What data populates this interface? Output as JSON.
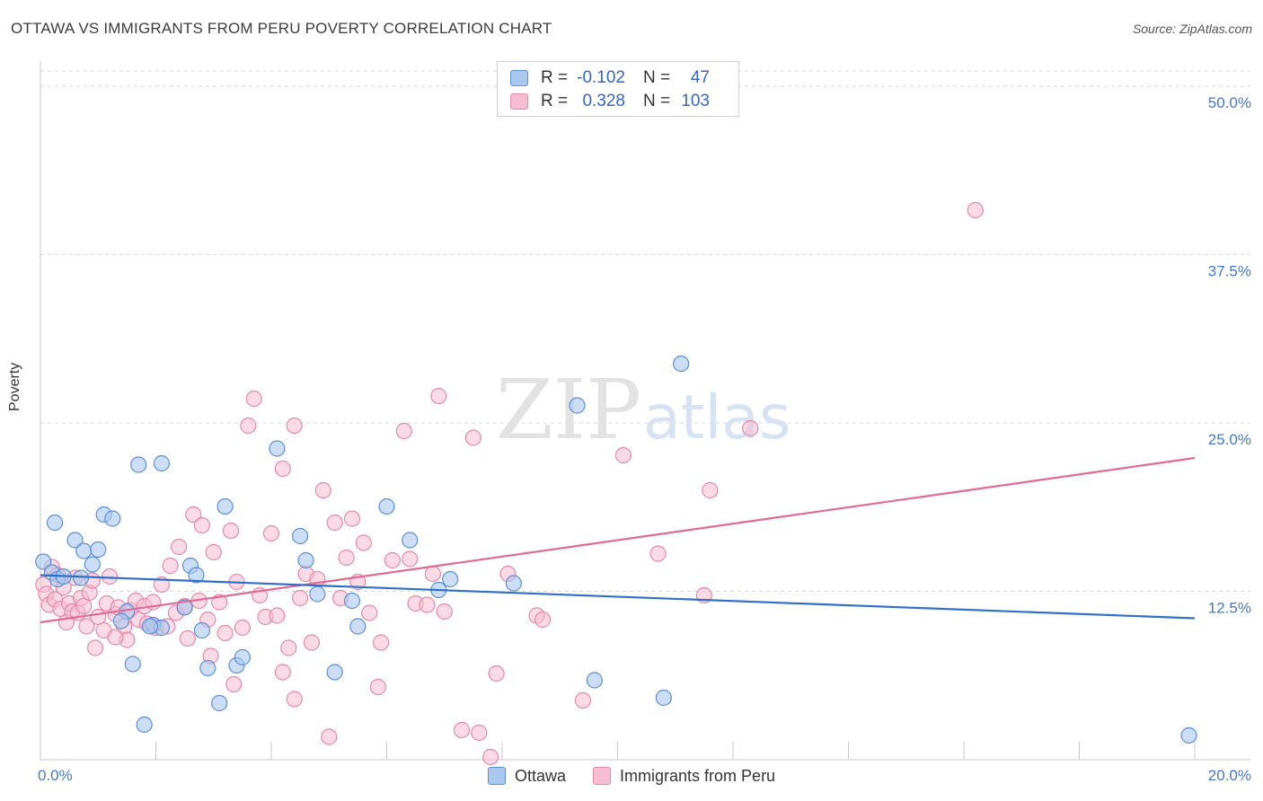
{
  "header": {
    "title": "OTTAWA VS IMMIGRANTS FROM PERU POVERTY CORRELATION CHART",
    "source": "Source: ZipAtlas.com"
  },
  "watermark": {
    "zip": "ZIP",
    "atlas": "atlas"
  },
  "colors": {
    "ottawa_fill": "#a9c8ef",
    "ottawa_stroke": "#5b8fd6",
    "ottawa_line": "#2f6fc8",
    "peru_fill": "#f6bcd0",
    "peru_stroke": "#e589aa",
    "peru_line": "#e06a94"
  },
  "stats": {
    "rows": [
      {
        "r_label": "R =",
        "r_value": "-0.102",
        "n_label": "N =",
        "n_value": "47"
      },
      {
        "r_label": "R =",
        "r_value": "0.328",
        "n_label": "N =",
        "n_value": "103"
      }
    ]
  },
  "legend": {
    "items": [
      "Ottawa",
      "Immigrants from Peru"
    ]
  },
  "chart_data": {
    "type": "scatter",
    "title": "OTTAWA VS IMMIGRANTS FROM PERU POVERTY CORRELATION CHART",
    "xlabel": "",
    "ylabel": "Poverty",
    "xlim": [
      0,
      20
    ],
    "ylim": [
      0,
      50
    ],
    "x_tick_labels": [
      "0.0%",
      "20.0%"
    ],
    "y_ticks": [
      12.5,
      25.0,
      37.5,
      50.0
    ],
    "y_tick_labels": [
      "12.5%",
      "25.0%",
      "37.5%",
      "50.0%"
    ],
    "legend_position": "top-center",
    "series": [
      {
        "name": "Ottawa",
        "trend": {
          "x": [
            0,
            20
          ],
          "y": [
            13.7,
            10.5
          ]
        },
        "points": [
          [
            0.05,
            14.7
          ],
          [
            0.2,
            13.9
          ],
          [
            0.3,
            13.4
          ],
          [
            0.25,
            17.6
          ],
          [
            0.6,
            16.3
          ],
          [
            0.7,
            13.5
          ],
          [
            0.75,
            15.5
          ],
          [
            0.9,
            14.5
          ],
          [
            1.0,
            15.6
          ],
          [
            1.1,
            18.2
          ],
          [
            1.25,
            17.9
          ],
          [
            1.5,
            11.0
          ],
          [
            1.4,
            10.3
          ],
          [
            1.6,
            7.1
          ],
          [
            1.7,
            21.9
          ],
          [
            1.8,
            2.6
          ],
          [
            1.95,
            10.0
          ],
          [
            2.1,
            9.8
          ],
          [
            2.1,
            22.0
          ],
          [
            2.5,
            11.3
          ],
          [
            2.6,
            14.4
          ],
          [
            2.7,
            13.7
          ],
          [
            2.8,
            9.6
          ],
          [
            2.9,
            6.8
          ],
          [
            3.1,
            4.2
          ],
          [
            3.2,
            18.8
          ],
          [
            3.4,
            7.0
          ],
          [
            3.5,
            7.6
          ],
          [
            4.1,
            23.1
          ],
          [
            4.5,
            16.6
          ],
          [
            4.6,
            14.8
          ],
          [
            4.8,
            12.3
          ],
          [
            5.1,
            6.5
          ],
          [
            5.4,
            11.8
          ],
          [
            5.5,
            9.9
          ],
          [
            6.0,
            18.8
          ],
          [
            6.4,
            16.3
          ],
          [
            6.9,
            12.6
          ],
          [
            7.1,
            13.4
          ],
          [
            8.2,
            13.1
          ],
          [
            9.3,
            26.3
          ],
          [
            9.6,
            5.9
          ],
          [
            10.8,
            4.6
          ],
          [
            11.1,
            29.4
          ],
          [
            19.9,
            1.8
          ],
          [
            0.4,
            13.6
          ],
          [
            1.9,
            9.9
          ]
        ]
      },
      {
        "name": "Immigrants from Peru",
        "trend": {
          "x": [
            0,
            20
          ],
          "y": [
            10.2,
            22.4
          ]
        },
        "points": [
          [
            0.05,
            13.0
          ],
          [
            0.1,
            12.3
          ],
          [
            0.15,
            11.5
          ],
          [
            0.2,
            14.3
          ],
          [
            0.25,
            11.9
          ],
          [
            0.3,
            13.7
          ],
          [
            0.35,
            11.2
          ],
          [
            0.4,
            12.8
          ],
          [
            0.45,
            10.2
          ],
          [
            0.5,
            11.6
          ],
          [
            0.55,
            11.0
          ],
          [
            0.6,
            13.5
          ],
          [
            0.65,
            10.9
          ],
          [
            0.7,
            12.0
          ],
          [
            0.75,
            11.4
          ],
          [
            0.8,
            9.9
          ],
          [
            0.85,
            12.4
          ],
          [
            0.9,
            13.3
          ],
          [
            0.95,
            8.3
          ],
          [
            1.0,
            10.6
          ],
          [
            1.1,
            9.6
          ],
          [
            1.15,
            11.6
          ],
          [
            1.2,
            13.6
          ],
          [
            1.3,
            10.8
          ],
          [
            1.35,
            11.3
          ],
          [
            1.45,
            9.9
          ],
          [
            1.5,
            8.9
          ],
          [
            1.55,
            11.1
          ],
          [
            1.65,
            11.8
          ],
          [
            1.7,
            10.4
          ],
          [
            1.8,
            11.4
          ],
          [
            1.85,
            10.1
          ],
          [
            1.95,
            11.7
          ],
          [
            2.0,
            9.8
          ],
          [
            2.1,
            13.0
          ],
          [
            2.2,
            9.9
          ],
          [
            2.25,
            14.4
          ],
          [
            2.35,
            10.9
          ],
          [
            2.4,
            15.8
          ],
          [
            2.5,
            11.4
          ],
          [
            2.55,
            9.0
          ],
          [
            2.65,
            18.2
          ],
          [
            2.75,
            11.8
          ],
          [
            2.8,
            17.4
          ],
          [
            2.9,
            10.4
          ],
          [
            2.95,
            7.7
          ],
          [
            3.0,
            15.4
          ],
          [
            3.1,
            11.7
          ],
          [
            3.2,
            9.4
          ],
          [
            3.3,
            17.0
          ],
          [
            3.35,
            5.6
          ],
          [
            3.4,
            13.2
          ],
          [
            3.5,
            9.8
          ],
          [
            3.6,
            24.8
          ],
          [
            3.7,
            26.8
          ],
          [
            3.8,
            12.2
          ],
          [
            3.9,
            10.6
          ],
          [
            4.0,
            16.8
          ],
          [
            4.1,
            10.7
          ],
          [
            4.2,
            21.6
          ],
          [
            4.3,
            8.3
          ],
          [
            4.4,
            24.8
          ],
          [
            4.5,
            12.0
          ],
          [
            4.6,
            13.8
          ],
          [
            4.7,
            8.7
          ],
          [
            4.8,
            13.4
          ],
          [
            4.9,
            20.0
          ],
          [
            5.0,
            1.7
          ],
          [
            5.1,
            17.6
          ],
          [
            5.2,
            12.0
          ],
          [
            5.3,
            15.0
          ],
          [
            5.4,
            17.9
          ],
          [
            5.5,
            13.2
          ],
          [
            5.6,
            16.1
          ],
          [
            5.7,
            10.9
          ],
          [
            5.85,
            5.4
          ],
          [
            5.9,
            8.7
          ],
          [
            6.1,
            14.8
          ],
          [
            6.3,
            24.4
          ],
          [
            6.5,
            11.6
          ],
          [
            6.7,
            11.5
          ],
          [
            6.8,
            13.8
          ],
          [
            6.9,
            27.0
          ],
          [
            7.0,
            11.0
          ],
          [
            7.3,
            2.2
          ],
          [
            7.5,
            23.9
          ],
          [
            7.6,
            2.0
          ],
          [
            7.8,
            0.2
          ],
          [
            7.9,
            6.4
          ],
          [
            8.1,
            13.8
          ],
          [
            8.6,
            10.7
          ],
          [
            8.7,
            10.4
          ],
          [
            9.4,
            4.4
          ],
          [
            10.1,
            22.6
          ],
          [
            10.7,
            15.3
          ],
          [
            11.6,
            20.0
          ],
          [
            12.3,
            24.6
          ],
          [
            16.2,
            40.8
          ],
          [
            11.5,
            12.2
          ],
          [
            6.4,
            14.9
          ],
          [
            4.2,
            6.5
          ],
          [
            4.4,
            4.5
          ],
          [
            1.3,
            9.1
          ]
        ]
      }
    ]
  }
}
